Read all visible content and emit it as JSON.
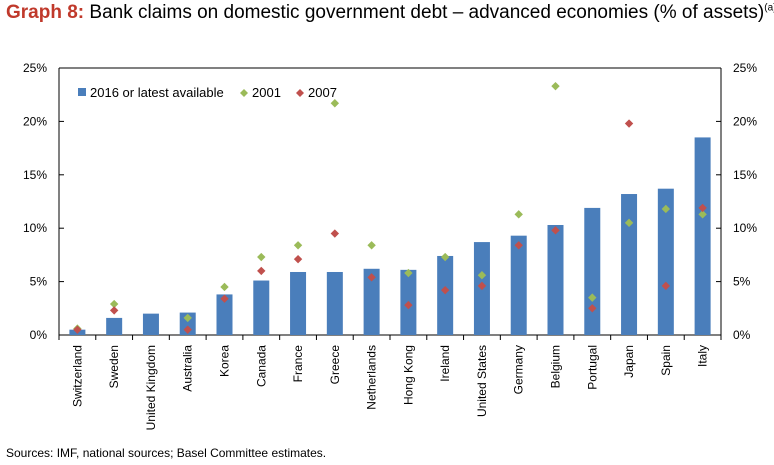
{
  "title": {
    "label": "Graph 8:",
    "text": " Bank claims on domestic government debt – advanced economies (% of assets)",
    "superscript": "(a)(b)"
  },
  "source": "Sources: IMF, national sources; Basel Committee estimates.",
  "chart_data": {
    "type": "bar",
    "categories": [
      "Switzerland",
      "Sweden",
      "United Kingdom",
      "Australia",
      "Korea",
      "Canada",
      "France",
      "Greece",
      "Netherlands",
      "Hong Kong",
      "Ireland",
      "United States",
      "Germany",
      "Belgium",
      "Portugal",
      "Japan",
      "Spain",
      "Italy"
    ],
    "series": [
      {
        "name": "2016 or latest available",
        "type": "bar",
        "color": "#4a7ebb",
        "values": [
          0.5,
          1.6,
          2.0,
          2.1,
          3.8,
          5.1,
          5.9,
          5.9,
          6.2,
          6.1,
          7.4,
          8.7,
          9.3,
          10.3,
          11.9,
          13.2,
          13.7,
          18.5
        ]
      },
      {
        "name": "2001",
        "type": "marker",
        "marker": "diamond",
        "color": "#9bbb59",
        "values": [
          0.6,
          2.9,
          null,
          1.6,
          4.5,
          7.3,
          8.4,
          21.7,
          8.4,
          5.8,
          7.3,
          5.6,
          11.3,
          23.3,
          3.5,
          10.5,
          11.8,
          11.3
        ]
      },
      {
        "name": "2007",
        "type": "marker",
        "marker": "diamond",
        "color": "#c0504d",
        "values": [
          0.5,
          2.3,
          null,
          0.5,
          3.4,
          6.0,
          7.1,
          9.5,
          5.4,
          2.8,
          4.2,
          4.6,
          8.4,
          9.8,
          2.5,
          19.8,
          4.6,
          11.9
        ]
      }
    ],
    "ylim": [
      0,
      25
    ],
    "yticks": [
      "0%",
      "5%",
      "10%",
      "15%",
      "20%",
      "25%"
    ],
    "ytick_values": [
      0,
      5,
      10,
      15,
      20,
      25
    ],
    "legend_position": "top-left",
    "grid": false,
    "xlabel": "",
    "ylabel": ""
  }
}
